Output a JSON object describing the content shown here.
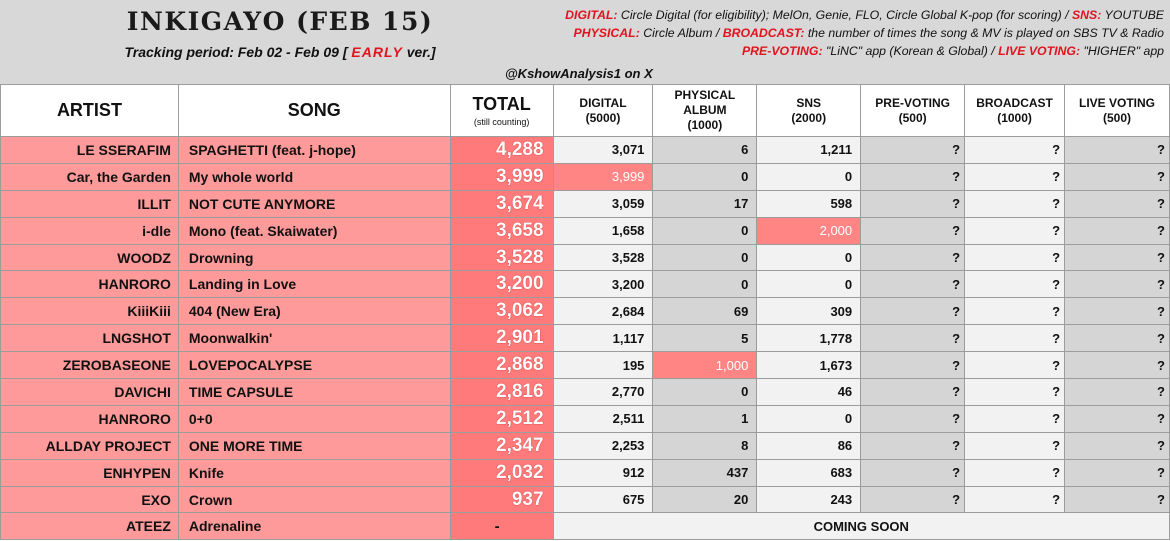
{
  "header": {
    "title": "INKIGAYO (FEB 15)",
    "period_prefix": "Tracking period: Feb 02 - Feb 09 [ ",
    "period_flag": "EARLY",
    "period_suffix": " ver.]",
    "credit": "@KshowAnalysis1 on X"
  },
  "legend": {
    "line1": [
      {
        "key": "DIGITAL:",
        "text": " Circle Digital (for eligibility); MelOn, Genie, FLO, Circle Global K-pop (for scoring) / "
      },
      {
        "key": "SNS:",
        "text": " YOUTUBE"
      }
    ],
    "line2": [
      {
        "key": "PHYSICAL:",
        "text": " Circle Album / "
      },
      {
        "key": "BROADCAST:",
        "text": " the number of times the song & MV is played on SBS TV & Radio"
      }
    ],
    "line3": [
      {
        "key": "PRE-VOTING:",
        "text": " \"LiNC\" app (Korean & Global) / "
      },
      {
        "key": "LIVE VOTING:",
        "text": " \"HIGHER\" app"
      }
    ]
  },
  "columns": {
    "artist": "ARTIST",
    "song": "SONG",
    "total": "TOTAL",
    "total_note": "(still counting)",
    "digital": "DIGITAL",
    "digital_max": "(5000)",
    "physical_line1": "PHYSICAL",
    "physical_line2": "ALBUM",
    "physical_max": "(1000)",
    "sns": "SNS",
    "sns_max": "(2000)",
    "prevoting": "PRE-VOTING",
    "prevoting_max": "(500)",
    "broadcast": "BROADCAST",
    "broadcast_max": "(1000)",
    "livevoting": "LIVE VOTING",
    "livevoting_max": "(500)"
  },
  "rows": [
    {
      "artist": "LE SSERAFIM",
      "song": "SPAGHETTI (feat. j-hope)",
      "total": "4,288",
      "digital": "3,071",
      "physical": "6",
      "sns": "1,211",
      "prevoting": "?",
      "broadcast": "?",
      "livevoting": "?"
    },
    {
      "artist": "Car, the Garden",
      "song": "My whole world",
      "total": "3,999",
      "digital": "3,999",
      "physical": "0",
      "sns": "0",
      "prevoting": "?",
      "broadcast": "?",
      "livevoting": "?",
      "hl": "digital"
    },
    {
      "artist": "ILLIT",
      "song": "NOT CUTE ANYMORE",
      "total": "3,674",
      "digital": "3,059",
      "physical": "17",
      "sns": "598",
      "prevoting": "?",
      "broadcast": "?",
      "livevoting": "?"
    },
    {
      "artist": "i-dle",
      "song": "Mono (feat. Skaiwater)",
      "total": "3,658",
      "digital": "1,658",
      "physical": "0",
      "sns": "2,000",
      "prevoting": "?",
      "broadcast": "?",
      "livevoting": "?",
      "hl": "sns"
    },
    {
      "artist": "WOODZ",
      "song": "Drowning",
      "total": "3,528",
      "digital": "3,528",
      "physical": "0",
      "sns": "0",
      "prevoting": "?",
      "broadcast": "?",
      "livevoting": "?"
    },
    {
      "artist": "HANRORO",
      "song": "Landing in Love",
      "total": "3,200",
      "digital": "3,200",
      "physical": "0",
      "sns": "0",
      "prevoting": "?",
      "broadcast": "?",
      "livevoting": "?"
    },
    {
      "artist": "KiiiKiii",
      "song": "404 (New Era)",
      "total": "3,062",
      "digital": "2,684",
      "physical": "69",
      "sns": "309",
      "prevoting": "?",
      "broadcast": "?",
      "livevoting": "?"
    },
    {
      "artist": "LNGSHOT",
      "song": "Moonwalkin'",
      "total": "2,901",
      "digital": "1,117",
      "physical": "5",
      "sns": "1,778",
      "prevoting": "?",
      "broadcast": "?",
      "livevoting": "?"
    },
    {
      "artist": "ZEROBASEONE",
      "song": "LOVEPOCALYPSE",
      "total": "2,868",
      "digital": "195",
      "physical": "1,000",
      "sns": "1,673",
      "prevoting": "?",
      "broadcast": "?",
      "livevoting": "?",
      "hl": "physical"
    },
    {
      "artist": "DAVICHI",
      "song": "TIME CAPSULE",
      "total": "2,816",
      "digital": "2,770",
      "physical": "0",
      "sns": "46",
      "prevoting": "?",
      "broadcast": "?",
      "livevoting": "?"
    },
    {
      "artist": "HANRORO",
      "song": "0+0",
      "total": "2,512",
      "digital": "2,511",
      "physical": "1",
      "sns": "0",
      "prevoting": "?",
      "broadcast": "?",
      "livevoting": "?"
    },
    {
      "artist": "ALLDAY PROJECT",
      "song": "ONE MORE TIME",
      "total": "2,347",
      "digital": "2,253",
      "physical": "8",
      "sns": "86",
      "prevoting": "?",
      "broadcast": "?",
      "livevoting": "?"
    },
    {
      "artist": "ENHYPEN",
      "song": "Knife",
      "total": "2,032",
      "digital": "912",
      "physical": "437",
      "sns": "683",
      "prevoting": "?",
      "broadcast": "?",
      "livevoting": "?"
    },
    {
      "artist": "EXO",
      "song": "Crown",
      "total": "937",
      "digital": "675",
      "physical": "20",
      "sns": "243",
      "prevoting": "?",
      "broadcast": "?",
      "livevoting": "?"
    }
  ],
  "last_row": {
    "artist": "ATEEZ",
    "song": "Adrenaline",
    "total": "-",
    "note": "COMING SOON"
  },
  "colors": {
    "accent_red": "#e0141e",
    "row_pink": "#ff9a9a",
    "total_red": "#ff7b7b",
    "highlight": "#ff8585",
    "grey_col": "#d5d5d5",
    "light_col": "#f2f2f2",
    "header_bg": "#d8d8d8"
  }
}
